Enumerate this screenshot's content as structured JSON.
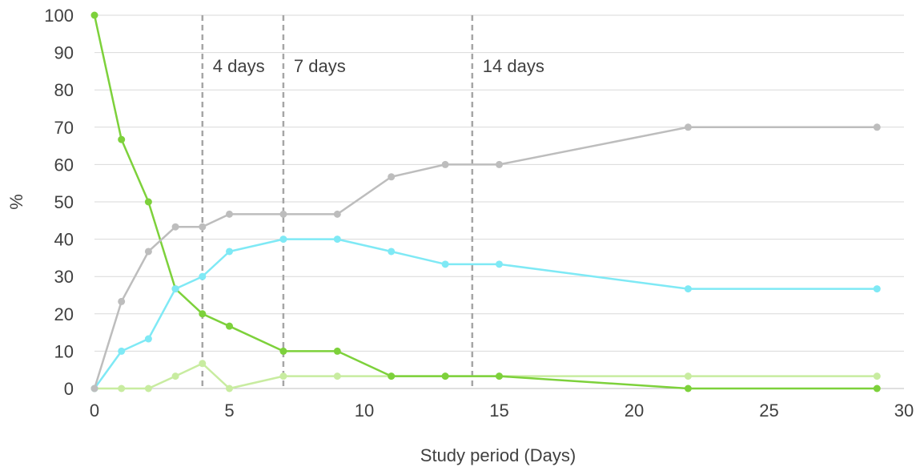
{
  "chart_data": {
    "type": "line",
    "title": "",
    "xlabel": "Study period (Days)",
    "ylabel": "%",
    "xlim": [
      0,
      30
    ],
    "ylim": [
      0,
      100
    ],
    "x_ticks": [
      0,
      5,
      10,
      15,
      20,
      25,
      30
    ],
    "y_ticks": [
      0,
      10,
      20,
      30,
      40,
      50,
      60,
      70,
      80,
      90,
      100
    ],
    "grid": "horizontal",
    "legend": "none",
    "series": [
      {
        "color": "#7dd13b",
        "points": [
          [
            0,
            100
          ],
          [
            1,
            66.7
          ],
          [
            2,
            50
          ],
          [
            3,
            26.7
          ],
          [
            4,
            20
          ],
          [
            5,
            16.7
          ],
          [
            7,
            10
          ],
          [
            9,
            10
          ],
          [
            11,
            3.3
          ],
          [
            13,
            3.3
          ],
          [
            15,
            3.3
          ],
          [
            22,
            0
          ],
          [
            29,
            0
          ]
        ]
      },
      {
        "color": "#bdbdbd",
        "points": [
          [
            0,
            0
          ],
          [
            1,
            23.3
          ],
          [
            2,
            36.7
          ],
          [
            3,
            43.3
          ],
          [
            4,
            43.3
          ],
          [
            5,
            46.7
          ],
          [
            7,
            46.7
          ],
          [
            9,
            46.7
          ],
          [
            11,
            56.7
          ],
          [
            13,
            60
          ],
          [
            15,
            60
          ],
          [
            22,
            70
          ],
          [
            29,
            70
          ]
        ]
      },
      {
        "color": "#7fe9f5",
        "points": [
          [
            0,
            0
          ],
          [
            1,
            10
          ],
          [
            2,
            13.3
          ],
          [
            3,
            26.7
          ],
          [
            4,
            30
          ],
          [
            5,
            36.7
          ],
          [
            7,
            40
          ],
          [
            9,
            40
          ],
          [
            11,
            36.7
          ],
          [
            13,
            33.3
          ],
          [
            15,
            33.3
          ],
          [
            22,
            26.7
          ],
          [
            29,
            26.7
          ]
        ]
      },
      {
        "color": "#c8eca0",
        "points": [
          [
            0,
            0
          ],
          [
            1,
            0
          ],
          [
            2,
            0
          ],
          [
            3,
            3.3
          ],
          [
            4,
            6.7
          ],
          [
            5,
            0
          ],
          [
            7,
            3.3
          ],
          [
            9,
            3.3
          ],
          [
            11,
            3.3
          ],
          [
            13,
            3.3
          ],
          [
            15,
            3.3
          ],
          [
            22,
            3.3
          ],
          [
            29,
            3.3
          ]
        ]
      }
    ],
    "reference_lines": [
      {
        "x": 4,
        "label": "4 days"
      },
      {
        "x": 7,
        "label": "7 days"
      },
      {
        "x": 14,
        "label": "14 days"
      }
    ]
  }
}
